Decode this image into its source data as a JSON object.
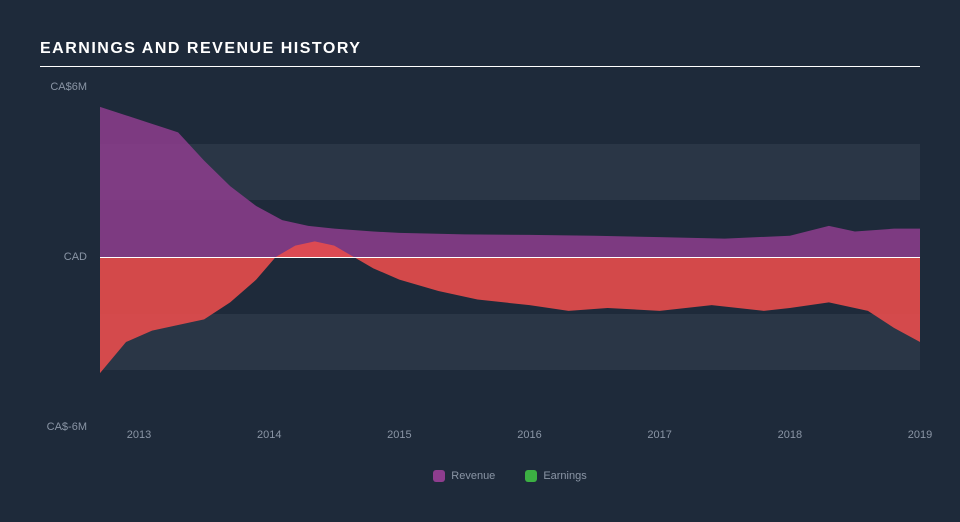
{
  "chart": {
    "type": "area",
    "title": "EARNINGS AND REVENUE HISTORY",
    "background_color": "#1e2a3a",
    "grid_band_color": "#2a3646",
    "title_color": "#ffffff",
    "label_color": "#8a95a5",
    "title_fontsize": 16,
    "label_fontsize": 11,
    "zero_line_color": "#ffffff",
    "y_axis": {
      "min": -6,
      "max": 6,
      "ticks": [
        {
          "value": 6,
          "label": "CA$6M"
        },
        {
          "value": 0,
          "label": "CAD"
        },
        {
          "value": -6,
          "label": "CA$-6M"
        }
      ]
    },
    "x_axis": {
      "min": 2012.7,
      "max": 2019.0,
      "ticks": [
        {
          "value": 2013,
          "label": "2013"
        },
        {
          "value": 2014,
          "label": "2014"
        },
        {
          "value": 2015,
          "label": "2015"
        },
        {
          "value": 2016,
          "label": "2016"
        },
        {
          "value": 2017,
          "label": "2017"
        },
        {
          "value": 2018,
          "label": "2018"
        },
        {
          "value": 2019,
          "label": "2019"
        }
      ]
    },
    "grid_bands": [
      {
        "from": 2,
        "to": 4
      },
      {
        "from": -2,
        "to": -4
      }
    ],
    "series": [
      {
        "name": "Revenue",
        "legend_label": "Revenue",
        "color": "#8e3d8e",
        "fill_opacity": 0.85,
        "data": [
          {
            "x": 2012.7,
            "y": 5.3
          },
          {
            "x": 2012.9,
            "y": 5.0
          },
          {
            "x": 2013.1,
            "y": 4.7
          },
          {
            "x": 2013.3,
            "y": 4.4
          },
          {
            "x": 2013.5,
            "y": 3.4
          },
          {
            "x": 2013.7,
            "y": 2.5
          },
          {
            "x": 2013.9,
            "y": 1.8
          },
          {
            "x": 2014.1,
            "y": 1.3
          },
          {
            "x": 2014.3,
            "y": 1.1
          },
          {
            "x": 2014.5,
            "y": 1.0
          },
          {
            "x": 2014.8,
            "y": 0.9
          },
          {
            "x": 2015.0,
            "y": 0.85
          },
          {
            "x": 2015.5,
            "y": 0.8
          },
          {
            "x": 2016.0,
            "y": 0.78
          },
          {
            "x": 2016.5,
            "y": 0.75
          },
          {
            "x": 2017.0,
            "y": 0.7
          },
          {
            "x": 2017.5,
            "y": 0.65
          },
          {
            "x": 2018.0,
            "y": 0.75
          },
          {
            "x": 2018.3,
            "y": 1.1
          },
          {
            "x": 2018.5,
            "y": 0.9
          },
          {
            "x": 2018.8,
            "y": 1.0
          },
          {
            "x": 2019.0,
            "y": 1.0
          }
        ]
      },
      {
        "name": "Earnings",
        "legend_label": "Earnings",
        "color_positive": "#3cb043",
        "color_negative": "#e74c4c",
        "fill_opacity": 0.9,
        "data": [
          {
            "x": 2012.7,
            "y": -4.1
          },
          {
            "x": 2012.9,
            "y": -3.0
          },
          {
            "x": 2013.1,
            "y": -2.6
          },
          {
            "x": 2013.3,
            "y": -2.4
          },
          {
            "x": 2013.5,
            "y": -2.2
          },
          {
            "x": 2013.7,
            "y": -1.6
          },
          {
            "x": 2013.9,
            "y": -0.8
          },
          {
            "x": 2014.05,
            "y": 0.0
          },
          {
            "x": 2014.2,
            "y": 0.4
          },
          {
            "x": 2014.35,
            "y": 0.55
          },
          {
            "x": 2014.5,
            "y": 0.4
          },
          {
            "x": 2014.65,
            "y": 0.0
          },
          {
            "x": 2014.8,
            "y": -0.4
          },
          {
            "x": 2015.0,
            "y": -0.8
          },
          {
            "x": 2015.3,
            "y": -1.2
          },
          {
            "x": 2015.6,
            "y": -1.5
          },
          {
            "x": 2016.0,
            "y": -1.7
          },
          {
            "x": 2016.3,
            "y": -1.9
          },
          {
            "x": 2016.6,
            "y": -1.8
          },
          {
            "x": 2017.0,
            "y": -1.9
          },
          {
            "x": 2017.4,
            "y": -1.7
          },
          {
            "x": 2017.8,
            "y": -1.9
          },
          {
            "x": 2018.0,
            "y": -1.8
          },
          {
            "x": 2018.3,
            "y": -1.6
          },
          {
            "x": 2018.6,
            "y": -1.9
          },
          {
            "x": 2018.8,
            "y": -2.5
          },
          {
            "x": 2019.0,
            "y": -3.0
          }
        ]
      }
    ],
    "legend": {
      "items": [
        {
          "label": "Revenue",
          "color": "#8e3d8e"
        },
        {
          "label": "Earnings",
          "color": "#3cb043"
        }
      ]
    }
  }
}
